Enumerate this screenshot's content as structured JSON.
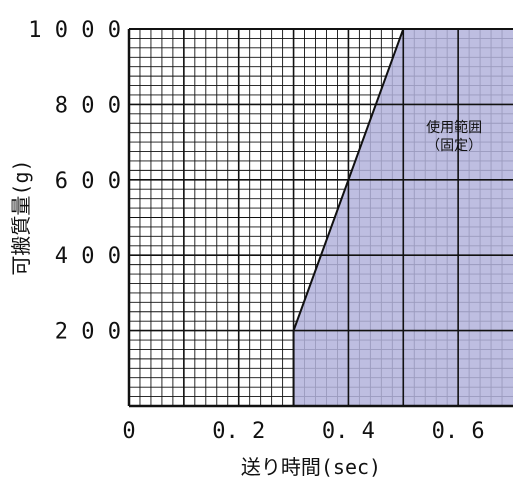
{
  "chart_data": {
    "type": "area",
    "title": "",
    "xlabel": "送り時間(sec)",
    "ylabel": "可搬質量(g)",
    "xlim": [
      0,
      0.7
    ],
    "ylim": [
      0,
      1000
    ],
    "x_ticks": [
      {
        "value": 0,
        "label": "0"
      },
      {
        "value": 0.2,
        "label": "0. 2"
      },
      {
        "value": 0.4,
        "label": "0. 4"
      },
      {
        "value": 0.6,
        "label": "0. 6"
      }
    ],
    "y_ticks": [
      {
        "value": 200,
        "label": "2 0 0"
      },
      {
        "value": 400,
        "label": "4 0 0"
      },
      {
        "value": 600,
        "label": "6 0 0"
      },
      {
        "value": 800,
        "label": "8 0 0"
      },
      {
        "value": 1000,
        "label": "1 0 0 0"
      }
    ],
    "series": [
      {
        "name": "",
        "x": [
          0.3,
          0.3,
          0.5,
          0.7,
          0.7
        ],
        "y": [
          0,
          200,
          1000,
          1000,
          0
        ]
      }
    ],
    "region_label": [
      "使用範囲",
      "（固定）"
    ],
    "grid": true,
    "fill_color": "#b3b3dc",
    "line_color": "#111111"
  }
}
